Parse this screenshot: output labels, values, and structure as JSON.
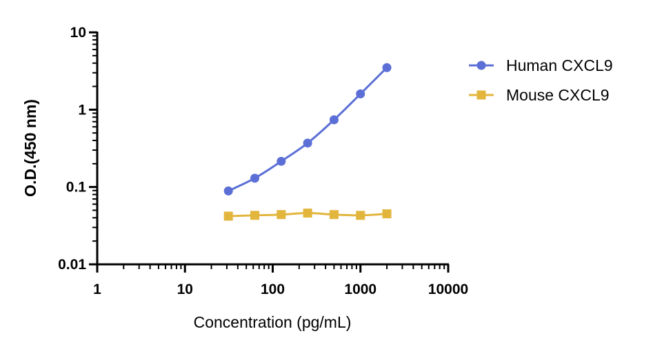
{
  "chart_data": {
    "type": "line",
    "xlabel": "Concentration (pg/mL)",
    "ylabel": "O.D.(450 nm)",
    "xscale": "log",
    "yscale": "log",
    "xlim": [
      1,
      10000
    ],
    "ylim": [
      0.01,
      10
    ],
    "xticks": [
      1,
      10,
      100,
      1000,
      10000
    ],
    "xtick_labels": [
      "1",
      "10",
      "100",
      "1000",
      "10000"
    ],
    "yticks": [
      0.01,
      0.1,
      1,
      10
    ],
    "ytick_labels": [
      "0.01",
      "0.1",
      "1",
      "10"
    ],
    "grid": false,
    "legend_position": "right",
    "series": [
      {
        "name": "Human CXCL9",
        "color": "#5b6fd6",
        "marker": "circle",
        "x": [
          31.25,
          62.5,
          125,
          250,
          500,
          1000,
          2000
        ],
        "y": [
          0.089,
          0.13,
          0.215,
          0.37,
          0.74,
          1.6,
          3.5
        ]
      },
      {
        "name": "Mouse CXCL9",
        "color": "#e2b53c",
        "marker": "square",
        "x": [
          31.25,
          62.5,
          125,
          250,
          500,
          1000,
          2000
        ],
        "y": [
          0.042,
          0.043,
          0.044,
          0.046,
          0.044,
          0.043,
          0.045
        ]
      }
    ]
  }
}
